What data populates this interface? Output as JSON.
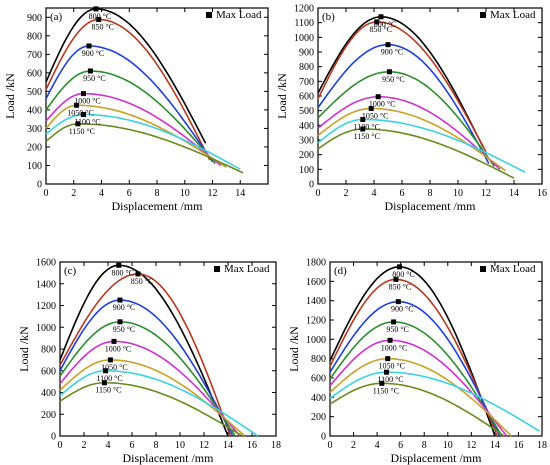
{
  "chart_data": [
    {
      "type": "line",
      "panel_label": "(a)",
      "xlabel": "Displacement /mm",
      "ylabel": "Load /kN",
      "xlim": [
        0,
        16
      ],
      "ylim": [
        0,
        950
      ],
      "xticks": [
        0,
        2,
        4,
        6,
        8,
        10,
        12,
        14
      ],
      "yticks": [
        0,
        100,
        200,
        300,
        400,
        500,
        600,
        700,
        800,
        900
      ],
      "legend": {
        "label": "Max Load",
        "position": "top-right"
      },
      "series": [
        {
          "name": "800 °C",
          "color": "#000000",
          "peak_x": 3.6,
          "peak_y": 945,
          "end_x": 11.5,
          "end_y": 220,
          "start_y": 550
        },
        {
          "name": "850 °C",
          "color": "#b5391f",
          "peak_x": 3.8,
          "peak_y": 888,
          "end_x": 11.8,
          "end_y": 130,
          "start_y": 510
        },
        {
          "name": "900 °C",
          "color": "#1f3fd6",
          "peak_x": 3.1,
          "peak_y": 745,
          "end_x": 12.0,
          "end_y": 120,
          "start_y": 460
        },
        {
          "name": "950 °C",
          "color": "#2e8b2e",
          "peak_x": 3.2,
          "peak_y": 610,
          "end_x": 12.2,
          "end_y": 110,
          "start_y": 400
        },
        {
          "name": "1000 °C",
          "color": "#cc33cc",
          "peak_x": 2.7,
          "peak_y": 488,
          "end_x": 12.6,
          "end_y": 100,
          "start_y": 340
        },
        {
          "name": "1050 °C",
          "color": "#c8a02a",
          "peak_x": 2.2,
          "peak_y": 425,
          "end_x": 13.0,
          "end_y": 90,
          "start_y": 300
        },
        {
          "name": "1100 °C",
          "color": "#3fd0e0",
          "peak_x": 2.7,
          "peak_y": 375,
          "end_x": 14.0,
          "end_y": 80,
          "start_y": 270
        },
        {
          "name": "1150 °C",
          "color": "#6a8a22",
          "peak_x": 2.3,
          "peak_y": 325,
          "end_x": 14.2,
          "end_y": 60,
          "start_y": 230
        }
      ]
    },
    {
      "type": "line",
      "panel_label": "(b)",
      "xlabel": "Displacement /mm",
      "ylabel": "Load /kN",
      "xlim": [
        0,
        16
      ],
      "ylim": [
        0,
        1200
      ],
      "xticks": [
        0,
        2,
        4,
        6,
        8,
        10,
        12,
        14,
        16
      ],
      "yticks": [
        0,
        100,
        200,
        300,
        400,
        500,
        600,
        700,
        800,
        900,
        1000,
        1100,
        1200
      ],
      "legend": {
        "label": "Max Load",
        "position": "top-right"
      },
      "series": [
        {
          "name": "800 °C",
          "color": "#000000",
          "peak_x": 4.5,
          "peak_y": 1140,
          "end_x": 11.8,
          "end_y": 250,
          "start_y": 620
        },
        {
          "name": "850 °C",
          "color": "#b5391f",
          "peak_x": 4.2,
          "peak_y": 1105,
          "end_x": 12.0,
          "end_y": 220,
          "start_y": 580
        },
        {
          "name": "900 °C",
          "color": "#1f3fd6",
          "peak_x": 5.0,
          "peak_y": 950,
          "end_x": 12.2,
          "end_y": 140,
          "start_y": 520
        },
        {
          "name": "950 °C",
          "color": "#2e8b2e",
          "peak_x": 5.1,
          "peak_y": 765,
          "end_x": 12.6,
          "end_y": 120,
          "start_y": 450
        },
        {
          "name": "1000 °C",
          "color": "#cc33cc",
          "peak_x": 4.3,
          "peak_y": 595,
          "end_x": 13.0,
          "end_y": 100,
          "start_y": 380
        },
        {
          "name": "1050 °C",
          "color": "#c8a02a",
          "peak_x": 3.8,
          "peak_y": 515,
          "end_x": 13.4,
          "end_y": 90,
          "start_y": 330
        },
        {
          "name": "1100 °C",
          "color": "#3fd0e0",
          "peak_x": 3.2,
          "peak_y": 440,
          "end_x": 14.8,
          "end_y": 80,
          "start_y": 280
        },
        {
          "name": "1150 °C",
          "color": "#6a8a22",
          "peak_x": 3.2,
          "peak_y": 375,
          "end_x": 14.0,
          "end_y": 40,
          "start_y": 240
        }
      ]
    },
    {
      "type": "line",
      "panel_label": "(c)",
      "xlabel": "Displacement /mm",
      "ylabel": "Load /kN",
      "xlim": [
        0,
        18
      ],
      "ylim": [
        0,
        1600
      ],
      "xticks": [
        0,
        2,
        4,
        6,
        8,
        10,
        12,
        14,
        16,
        18
      ],
      "yticks": [
        0,
        200,
        400,
        600,
        800,
        1000,
        1200,
        1400,
        1600
      ],
      "legend": {
        "label": "Max Load",
        "position": "top-right"
      },
      "series": [
        {
          "name": "800 °C",
          "color": "#000000",
          "peak_x": 4.9,
          "peak_y": 1570,
          "end_x": 14.0,
          "end_y": 0,
          "start_y": 700
        },
        {
          "name": "850 °C",
          "color": "#b5391f",
          "peak_x": 6.5,
          "peak_y": 1490,
          "end_x": 14.2,
          "end_y": 0,
          "start_y": 650
        },
        {
          "name": "900 °C",
          "color": "#1f3fd6",
          "peak_x": 5.0,
          "peak_y": 1250,
          "end_x": 14.4,
          "end_y": 0,
          "start_y": 600
        },
        {
          "name": "950 °C",
          "color": "#2e8b2e",
          "peak_x": 5.0,
          "peak_y": 1050,
          "end_x": 14.6,
          "end_y": 0,
          "start_y": 550
        },
        {
          "name": "1000 °C",
          "color": "#cc33cc",
          "peak_x": 4.5,
          "peak_y": 870,
          "end_x": 15.0,
          "end_y": 0,
          "start_y": 480
        },
        {
          "name": "1050 °C",
          "color": "#c8a02a",
          "peak_x": 4.2,
          "peak_y": 700,
          "end_x": 15.4,
          "end_y": 0,
          "start_y": 420
        },
        {
          "name": "1100 °C",
          "color": "#3fd0e0",
          "peak_x": 3.8,
          "peak_y": 600,
          "end_x": 16.5,
          "end_y": 0,
          "start_y": 370
        },
        {
          "name": "1150 °C",
          "color": "#6a8a22",
          "peak_x": 3.7,
          "peak_y": 490,
          "end_x": 15.2,
          "end_y": 0,
          "start_y": 320
        }
      ]
    },
    {
      "type": "line",
      "panel_label": "(d)",
      "xlabel": "Displacement /mm",
      "ylabel": "Load /kN",
      "xlim": [
        0,
        18
      ],
      "ylim": [
        0,
        1800
      ],
      "xticks": [
        0,
        2,
        4,
        6,
        8,
        10,
        12,
        14,
        16,
        18
      ],
      "yticks": [
        0,
        200,
        400,
        600,
        800,
        1000,
        1200,
        1400,
        1600,
        1800
      ],
      "legend": {
        "label": "Max Load",
        "position": "top-right"
      },
      "series": [
        {
          "name": "800 °C",
          "color": "#000000",
          "peak_x": 5.9,
          "peak_y": 1750,
          "end_x": 14.0,
          "end_y": 0,
          "start_y": 780
        },
        {
          "name": "850 °C",
          "color": "#b5391f",
          "peak_x": 5.6,
          "peak_y": 1620,
          "end_x": 14.2,
          "end_y": 0,
          "start_y": 720
        },
        {
          "name": "900 °C",
          "color": "#1f3fd6",
          "peak_x": 5.8,
          "peak_y": 1390,
          "end_x": 14.4,
          "end_y": 0,
          "start_y": 660
        },
        {
          "name": "950 °C",
          "color": "#2e8b2e",
          "peak_x": 5.4,
          "peak_y": 1180,
          "end_x": 14.6,
          "end_y": 0,
          "start_y": 590
        },
        {
          "name": "1000 °C",
          "color": "#cc33cc",
          "peak_x": 5.1,
          "peak_y": 990,
          "end_x": 15.0,
          "end_y": 0,
          "start_y": 520
        },
        {
          "name": "1050 °C",
          "color": "#c8a02a",
          "peak_x": 4.9,
          "peak_y": 800,
          "end_x": 15.4,
          "end_y": 0,
          "start_y": 450
        },
        {
          "name": "1100 °C",
          "color": "#3fd0e0",
          "peak_x": 4.8,
          "peak_y": 660,
          "end_x": 17.8,
          "end_y": 50,
          "start_y": 390
        },
        {
          "name": "1150 °C",
          "color": "#6a8a22",
          "peak_x": 4.4,
          "peak_y": 545,
          "end_x": 14.8,
          "end_y": 0,
          "start_y": 330
        }
      ]
    }
  ]
}
